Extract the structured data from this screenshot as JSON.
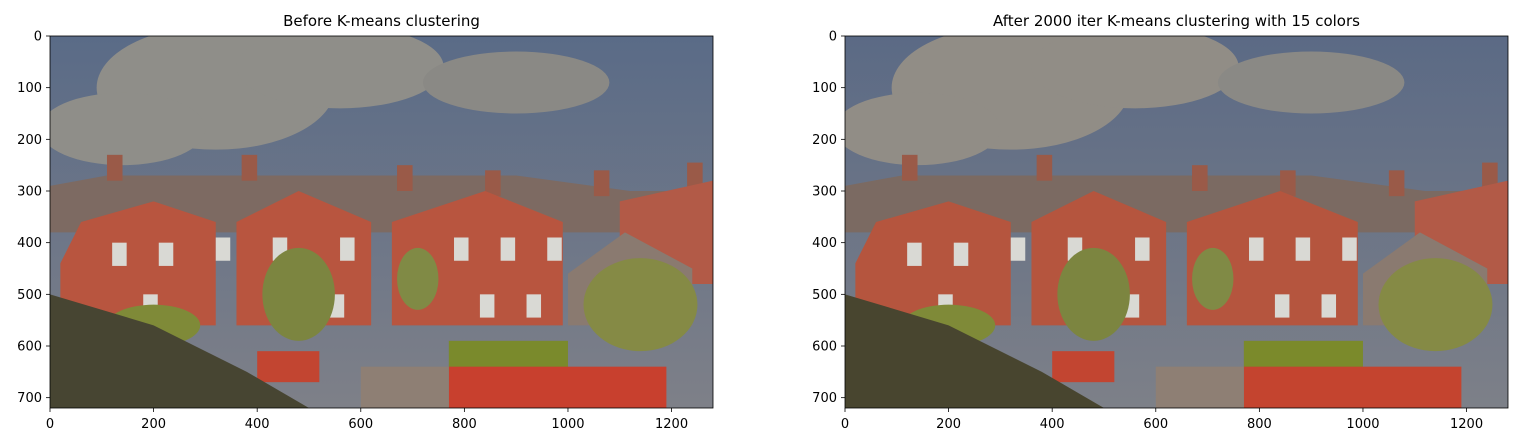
{
  "chart_data": [
    {
      "type": "image",
      "title": "Before K-means clustering",
      "xlabel": "",
      "ylabel": "",
      "xlim": [
        0,
        1280
      ],
      "ylim": [
        720,
        0
      ],
      "xticks": [
        0,
        200,
        400,
        600,
        800,
        1000,
        1200
      ],
      "yticks": [
        0,
        100,
        200,
        300,
        400,
        500,
        600,
        700
      ],
      "image_content": "photo of a row of red-brick terraced houses under a cloudy sky with gardens and trees in the foreground",
      "colors": {
        "sky_top": "#5a6b87",
        "sky": "#7e8088",
        "cloud": "#8f8e89",
        "roof": "#7d6a62",
        "brick": "#b8553f",
        "grass": "#7a8a2c",
        "shadow": "#474532",
        "red_fence": "#c8402e"
      }
    },
    {
      "type": "image",
      "title": "After 2000 iter K-means clustering with 15 colors",
      "xlabel": "",
      "ylabel": "",
      "xlim": [
        0,
        1280
      ],
      "ylim": [
        720,
        0
      ],
      "xticks": [
        0,
        200,
        400,
        600,
        800,
        1000,
        1200
      ],
      "yticks": [
        0,
        100,
        200,
        300,
        400,
        500,
        600,
        700
      ],
      "image_content": "same photo quantized to 15 flat colors",
      "colors": {
        "sky_top": "#5b6a85",
        "sky": "#7d8088",
        "cloud": "#918d86",
        "roof": "#7b6a62",
        "brick": "#b5553e",
        "grass": "#7b8a2b",
        "shadow": "#48452f",
        "red_fence": "#c4442f"
      }
    }
  ]
}
